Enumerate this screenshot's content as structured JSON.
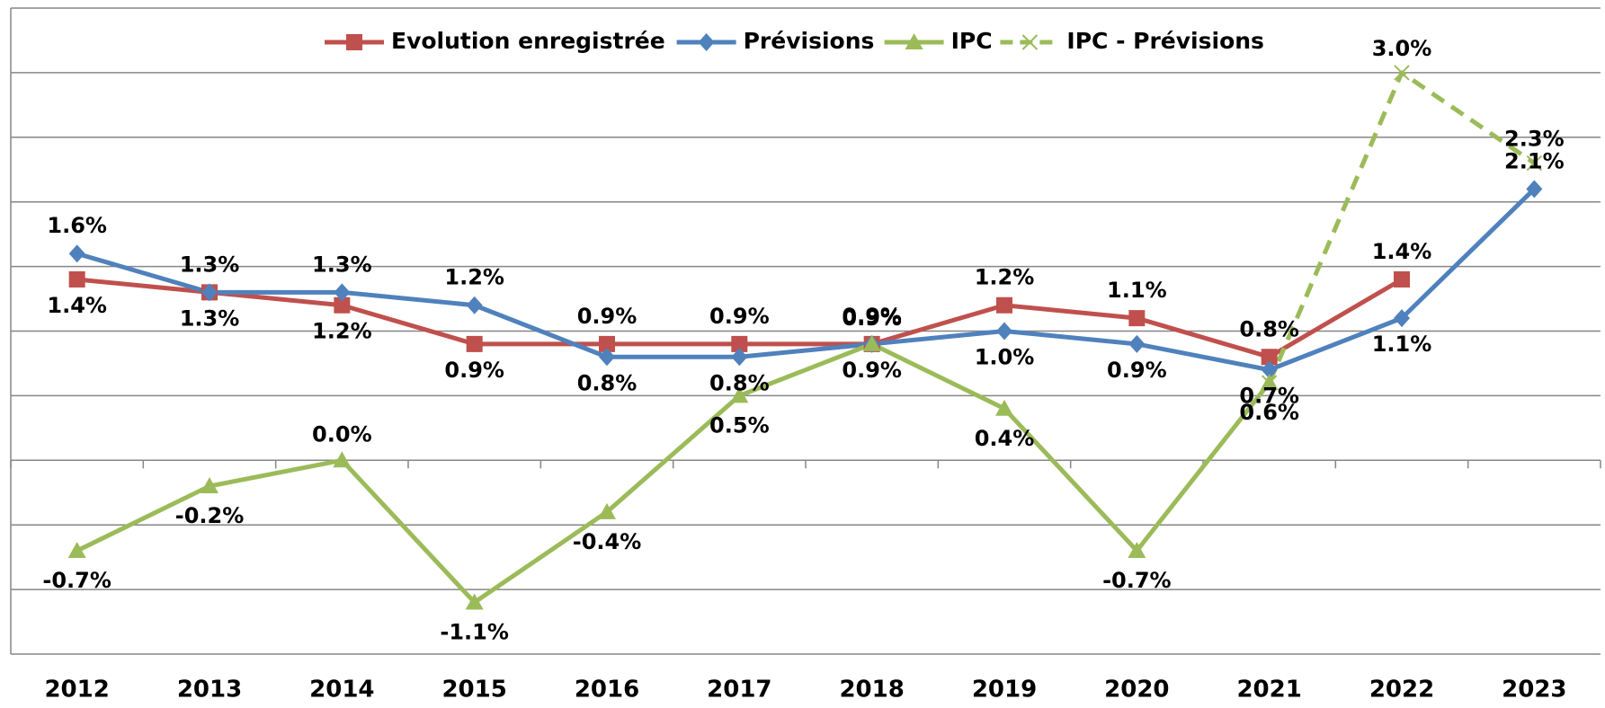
{
  "chart_data": {
    "type": "line",
    "categories": [
      "2012",
      "2013",
      "2014",
      "2015",
      "2016",
      "2017",
      "2018",
      "2019",
      "2020",
      "2021",
      "2022",
      "2023"
    ],
    "series": [
      {
        "name": "Evolution enregistrée",
        "color": "#c0504d",
        "marker": "square",
        "dashed": false,
        "values": [
          1.4,
          1.3,
          1.2,
          0.9,
          0.9,
          0.9,
          0.9,
          1.2,
          1.1,
          0.8,
          1.4,
          null
        ],
        "value_labels": [
          "1.4%",
          "1.3%",
          "1.2%",
          "0.9%",
          "0.9%",
          "0.9%",
          "0.9%",
          "1.2%",
          "1.1%",
          "0.8%",
          "1.4%",
          null
        ]
      },
      {
        "name": "Prévisions",
        "color": "#4f81bd",
        "marker": "diamond",
        "dashed": false,
        "values": [
          1.6,
          1.3,
          1.3,
          1.2,
          0.8,
          0.8,
          0.9,
          1.0,
          0.9,
          0.7,
          1.1,
          2.1
        ],
        "value_labels": [
          "1.6%",
          "1.3%",
          "1.3%",
          "1.2%",
          "0.8%",
          "0.8%",
          "0.9%",
          "1.0%",
          "0.9%",
          "0.7%",
          "1.1%",
          "2.1%"
        ]
      },
      {
        "name": "IPC",
        "color": "#9bbb59",
        "marker": "triangle",
        "dashed": false,
        "values": [
          -0.7,
          -0.2,
          0.0,
          -1.1,
          -0.4,
          0.5,
          0.9,
          0.4,
          -0.7,
          0.6,
          null,
          null
        ],
        "value_labels": [
          "-0.7%",
          "-0.2%",
          "0.0%",
          "-1.1%",
          "-0.4%",
          "0.5%",
          "0.9%",
          "0.4%",
          "-0.7%",
          "0.6%",
          null,
          null
        ]
      },
      {
        "name": "IPC - Prévisions",
        "color": "#9bbb59",
        "marker": "x",
        "dashed": true,
        "values": [
          null,
          null,
          null,
          null,
          null,
          null,
          null,
          null,
          null,
          0.6,
          3.0,
          2.3
        ],
        "value_labels": [
          null,
          null,
          null,
          null,
          null,
          null,
          null,
          null,
          null,
          null,
          "3.0%",
          "2.3%"
        ]
      }
    ],
    "ylim": [
      -1.5,
      3.5
    ],
    "yticks": [
      -1.5,
      -1,
      -0.5,
      0,
      0.5,
      1,
      1.5,
      2,
      2.5,
      3,
      3.5
    ],
    "show_ytick_labels": false,
    "grid": true,
    "legend": "top"
  }
}
